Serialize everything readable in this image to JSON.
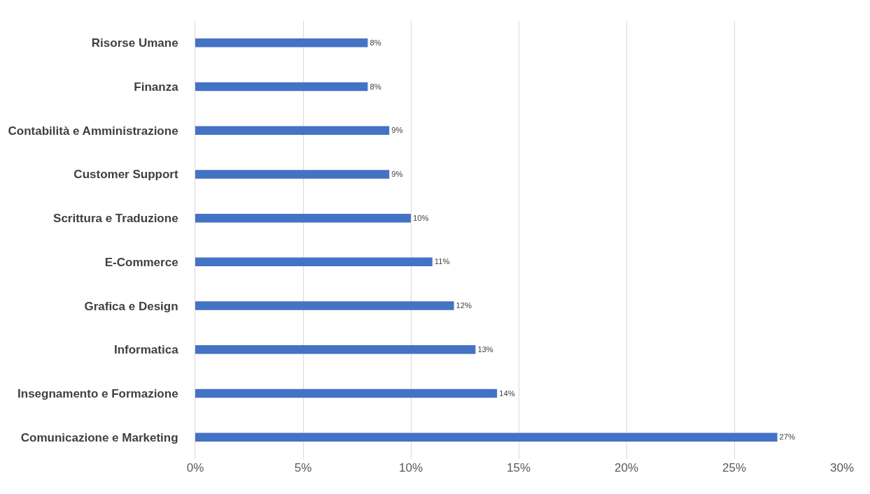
{
  "chart_data": {
    "type": "bar",
    "orientation": "horizontal",
    "categories": [
      "Risorse Umane",
      "Finanza",
      "Contabilità e Amministrazione",
      "Customer Support",
      "Scrittura e Traduzione",
      "E-Commerce",
      "Grafica e Design",
      "Informatica",
      "Insegnamento e Formazione",
      "Comunicazione e Marketing"
    ],
    "values": [
      8,
      8,
      9,
      9,
      10,
      11,
      12,
      13,
      14,
      27
    ],
    "value_labels": [
      "8%",
      "8%",
      "9%",
      "9%",
      "10%",
      "11%",
      "12%",
      "13%",
      "14%",
      "27%"
    ],
    "color": "#4472c4",
    "xlim": [
      0,
      30
    ],
    "xticks": [
      {
        "value": 0,
        "label": "0%"
      },
      {
        "value": 5,
        "label": "5%"
      },
      {
        "value": 10,
        "label": "10%"
      },
      {
        "value": 15,
        "label": "15%"
      },
      {
        "value": 20,
        "label": "20%"
      },
      {
        "value": 25,
        "label": "25%"
      },
      {
        "value": 30,
        "label": "30%"
      }
    ],
    "grid": "x",
    "legend": false
  }
}
